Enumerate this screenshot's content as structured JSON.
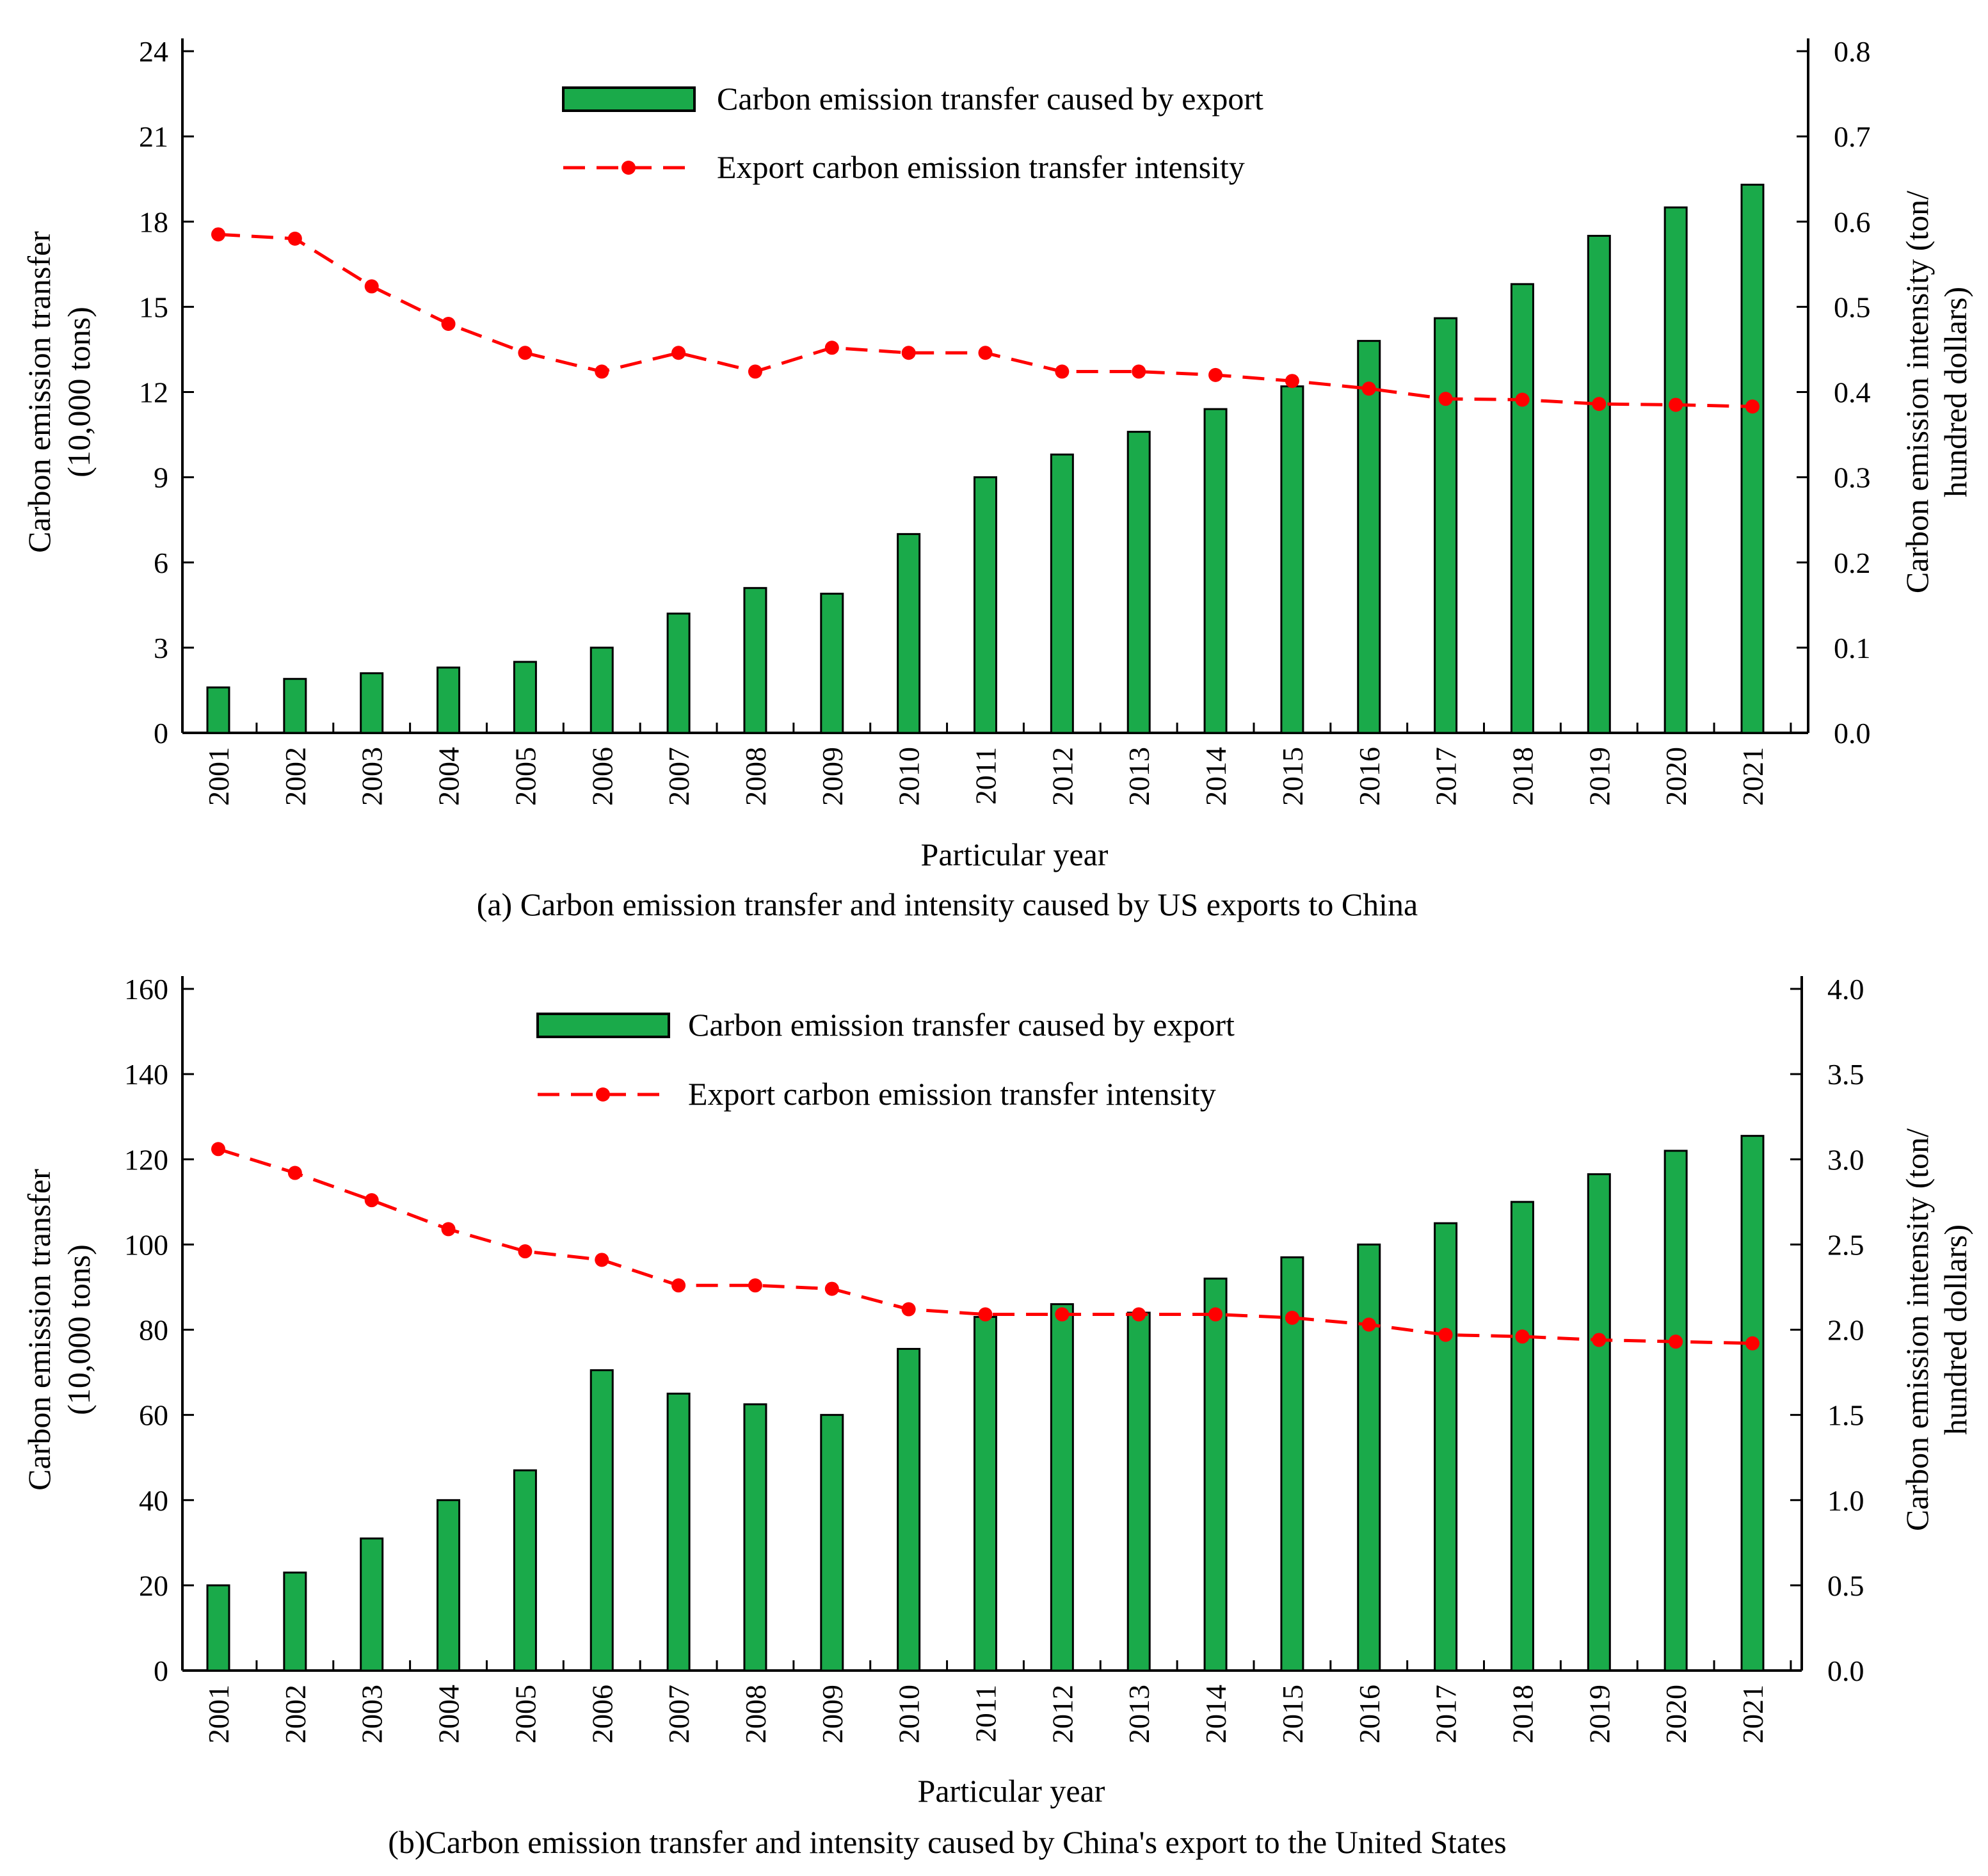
{
  "colors": {
    "bar_fill": "#1aaa4a",
    "bar_stroke": "#000000",
    "line": "#ff0000",
    "axis": "#000000"
  },
  "chart_data": [
    {
      "type": "bar",
      "title": "(a) Carbon emission transfer and intensity caused by US exports to China",
      "xlabel": "Particular year",
      "ylabel_lines": [
        "Carbon emission transfer",
        "(10,000 tons)"
      ],
      "y2label_lines": [
        "Carbon emission intensity (ton/",
        "hundred dollars)"
      ],
      "categories": [
        "2001",
        "2002",
        "2003",
        "2004",
        "2005",
        "2006",
        "2007",
        "2008",
        "2009",
        "2010",
        "2011",
        "2012",
        "2013",
        "2014",
        "2015",
        "2016",
        "2017",
        "2018",
        "2019",
        "2020",
        "2021"
      ],
      "ylim": [
        0,
        24
      ],
      "yticks": [
        "0",
        "3",
        "6",
        "9",
        "12",
        "15",
        "18",
        "21",
        "24"
      ],
      "y2lim": [
        0,
        0.8
      ],
      "y2ticks": [
        "0.0",
        "0.1",
        "0.2",
        "0.3",
        "0.4",
        "0.5",
        "0.6",
        "0.7",
        "0.8"
      ],
      "legend": {
        "position": "top-center",
        "bar_label": "Carbon emission transfer caused by export",
        "line_label": "Export carbon emission transfer intensity"
      },
      "series": [
        {
          "name": "Carbon emission transfer caused by export",
          "type": "bar",
          "axis": "left",
          "values": [
            1.6,
            1.9,
            2.1,
            2.3,
            2.5,
            3.0,
            4.2,
            5.1,
            4.9,
            7.0,
            9.0,
            9.8,
            10.6,
            11.4,
            12.2,
            13.8,
            14.6,
            15.8,
            17.5,
            18.5,
            19.3
          ]
        },
        {
          "name": "Export carbon emission transfer intensity",
          "type": "line",
          "axis": "right",
          "values": [
            0.585,
            0.58,
            0.524,
            0.48,
            0.446,
            0.424,
            0.446,
            0.424,
            0.452,
            0.446,
            0.446,
            0.424,
            0.424,
            0.42,
            0.413,
            0.404,
            0.392,
            0.391,
            0.386,
            0.385,
            0.383
          ]
        }
      ]
    },
    {
      "type": "bar",
      "title": "(b)Carbon emission transfer and intensity caused by China's export to the United States",
      "xlabel": "Particular year",
      "ylabel_lines": [
        "Carbon emission transfer",
        "(10,000 tons)"
      ],
      "y2label_lines": [
        "Carbon emission intensity (ton/",
        "hundred dollars)"
      ],
      "categories": [
        "2001",
        "2002",
        "2003",
        "2004",
        "2005",
        "2006",
        "2007",
        "2008",
        "2009",
        "2010",
        "2011",
        "2012",
        "2013",
        "2014",
        "2015",
        "2016",
        "2017",
        "2018",
        "2019",
        "2020",
        "2021"
      ],
      "ylim": [
        0,
        160
      ],
      "yticks": [
        "0",
        "20",
        "40",
        "60",
        "80",
        "100",
        "120",
        "140",
        "160"
      ],
      "y2lim": [
        0,
        4.0
      ],
      "y2ticks": [
        "0.0",
        "0.5",
        "1.0",
        "1.5",
        "2.0",
        "2.5",
        "3.0",
        "3.5",
        "4.0"
      ],
      "legend": {
        "position": "top-center",
        "bar_label": "Carbon emission transfer caused by export",
        "line_label": "Export carbon emission transfer intensity"
      },
      "series": [
        {
          "name": "Carbon emission transfer caused by export",
          "type": "bar",
          "axis": "left",
          "values": [
            20,
            23,
            31,
            40,
            47,
            70.5,
            65,
            62.5,
            60,
            75.5,
            83,
            86,
            84,
            92,
            97,
            100,
            105,
            110,
            116.5,
            122,
            125.5
          ]
        },
        {
          "name": "Export carbon emission transfer intensity",
          "type": "line",
          "axis": "right",
          "values": [
            3.06,
            2.92,
            2.76,
            2.59,
            2.46,
            2.41,
            2.26,
            2.26,
            2.24,
            2.12,
            2.09,
            2.09,
            2.09,
            2.09,
            2.07,
            2.03,
            1.97,
            1.96,
            1.94,
            1.93,
            1.92
          ]
        }
      ]
    }
  ]
}
